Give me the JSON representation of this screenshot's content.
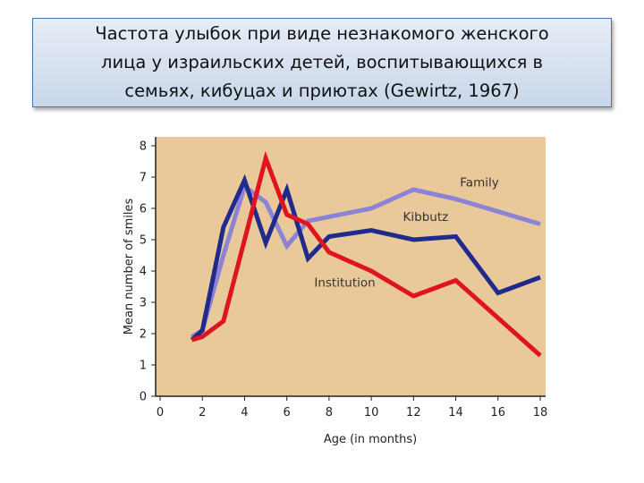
{
  "title": "Частота улыбок при виде незнакомого женского\nлица у израильских детей, воспитывающихся в\nсемьях, кибуцах и приютах (Gewirtz, 1967)",
  "chart_data": {
    "type": "line",
    "xlabel": "Age (in months)",
    "ylabel": "Mean number of smiles",
    "xlim": [
      0,
      18
    ],
    "ylim": [
      0,
      8
    ],
    "xticks": [
      "0",
      "2",
      "4",
      "6",
      "8",
      "10",
      "12",
      "14",
      "16",
      "18"
    ],
    "yticks": [
      "0",
      "1",
      "2",
      "3",
      "4",
      "5",
      "6",
      "7",
      "8"
    ],
    "grid": false,
    "series": [
      {
        "name": "Family",
        "color": "#8b84d6",
        "x": [
          1.5,
          2,
          3,
          4,
          5,
          6,
          7,
          10,
          12,
          14,
          16,
          18
        ],
        "y": [
          1.9,
          2.1,
          4.5,
          6.7,
          6.2,
          4.8,
          5.6,
          6.0,
          6.6,
          6.3,
          5.9,
          5.5
        ]
      },
      {
        "name": "Kibbutz",
        "color": "#1f2a8c",
        "x": [
          1.5,
          2,
          3,
          4,
          5,
          6,
          7,
          8,
          10,
          12,
          14,
          16,
          18
        ],
        "y": [
          1.8,
          2.1,
          5.4,
          6.9,
          4.9,
          6.6,
          4.4,
          5.1,
          5.3,
          5.0,
          5.1,
          3.3,
          3.8
        ]
      },
      {
        "name": "Institution",
        "color": "#e0141e",
        "x": [
          1.5,
          2,
          3,
          5,
          6,
          7,
          8,
          10,
          12,
          14,
          16,
          18
        ],
        "y": [
          1.8,
          1.9,
          2.4,
          7.6,
          5.8,
          5.5,
          4.6,
          4.0,
          3.2,
          3.7,
          2.5,
          1.3
        ]
      }
    ],
    "series_labels": [
      {
        "series": "Family",
        "at": [
          14.2,
          6.7
        ]
      },
      {
        "series": "Kibbutz",
        "at": [
          11.5,
          5.6
        ]
      },
      {
        "series": "Institution",
        "at": [
          7.3,
          3.5
        ]
      }
    ]
  }
}
